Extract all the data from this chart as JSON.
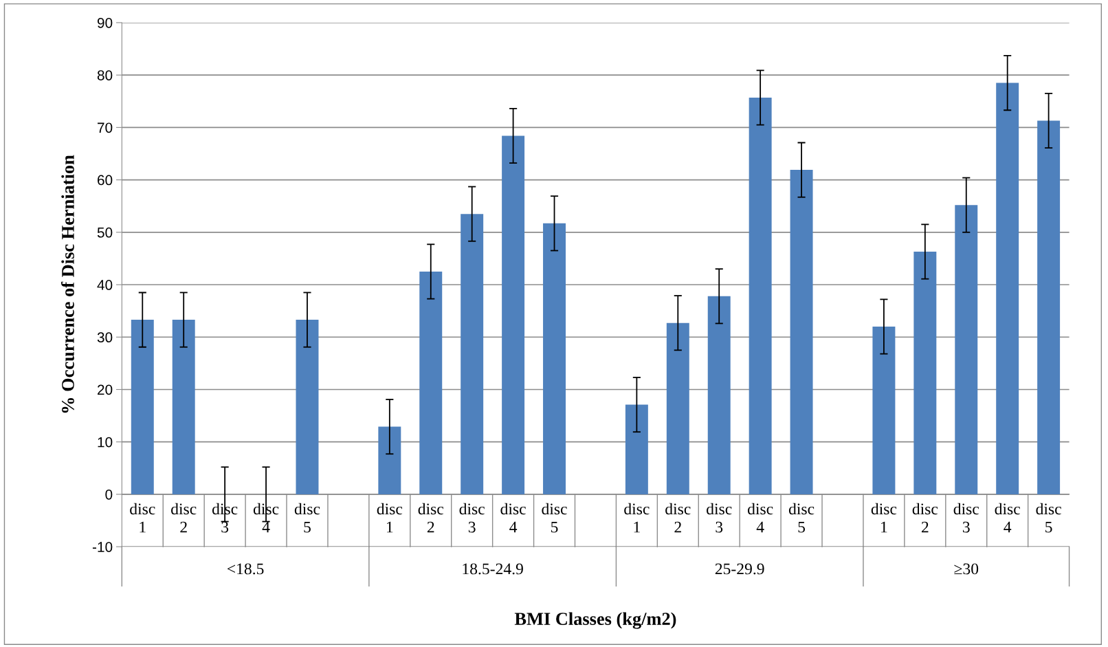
{
  "chart_data": {
    "type": "bar",
    "xlabel": "BMI Classes (kg/m2)",
    "ylabel": "% Occurrence of Disc Herniation",
    "categories": [
      "disc\n1",
      "disc\n2",
      "disc\n3",
      "disc\n4",
      "disc\n5",
      null,
      "disc\n1",
      "disc\n2",
      "disc\n3",
      "disc\n4",
      "disc\n5",
      null,
      "disc\n1",
      "disc\n2",
      "disc\n3",
      "disc\n4",
      "disc\n5",
      null,
      "disc\n1",
      "disc\n2",
      "disc\n3",
      "disc\n4",
      "disc\n5"
    ],
    "values": [
      33.3,
      33.3,
      0,
      0,
      33.3,
      null,
      12.9,
      42.5,
      53.5,
      68.4,
      51.7,
      null,
      17.1,
      32.7,
      37.8,
      75.7,
      61.9,
      null,
      32.0,
      46.3,
      55.2,
      78.5,
      71.3
    ],
    "errors": [
      5.2,
      5.2,
      5.2,
      5.2,
      5.2,
      null,
      5.2,
      5.2,
      5.2,
      5.2,
      5.2,
      null,
      5.2,
      5.2,
      5.2,
      5.2,
      5.2,
      null,
      5.2,
      5.2,
      5.2,
      5.2,
      5.2
    ],
    "color": "#4f81bd",
    "annotations": [
      "<18.5",
      "18.5-24.9",
      "25-29.9",
      "≥30"
    ],
    "ylim": [
      -10,
      90
    ],
    "yticks": [
      -10,
      0,
      10,
      20,
      30,
      40,
      50,
      60,
      70,
      80,
      90
    ],
    "grid": "y"
  }
}
